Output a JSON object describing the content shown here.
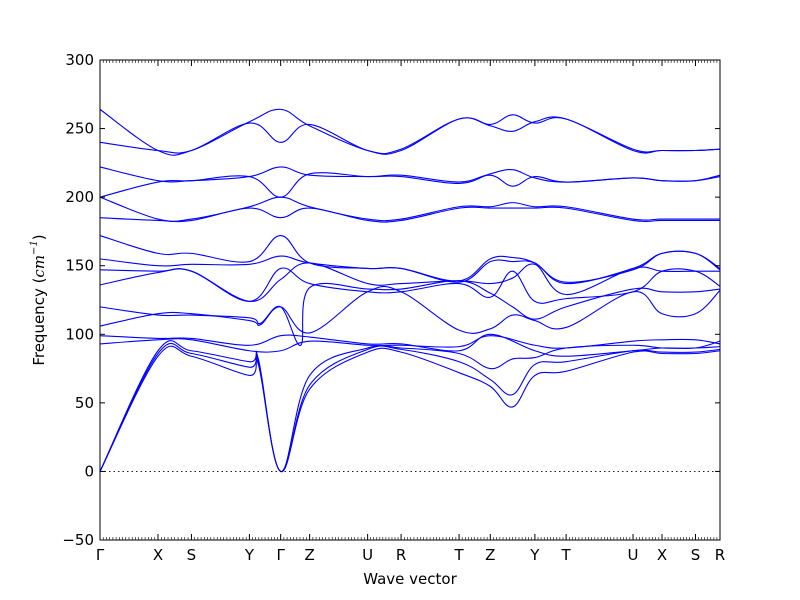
{
  "chart_data": {
    "type": "line",
    "title": "",
    "xlabel": "Wave vector",
    "ylabel": {
      "prefix": "Frequency (",
      "unit_base": "cm",
      "unit_exp": "−1",
      "suffix": ")"
    },
    "ylim": [
      -50,
      300
    ],
    "yticks": [
      -50,
      0,
      50,
      100,
      150,
      200,
      250,
      300
    ],
    "ytick_labels": [
      "−50",
      "0",
      "50",
      "100",
      "150",
      "200",
      "250",
      "300"
    ],
    "xlim": [
      0,
      13.9
    ],
    "kpoints": [
      {
        "label": "Γ",
        "x": 0
      },
      {
        "label": "X",
        "x": 1.3
      },
      {
        "label": "S",
        "x": 2.05
      },
      {
        "label": "Y",
        "x": 3.35
      },
      {
        "label": "Γ",
        "x": 4.05
      },
      {
        "label": "Z",
        "x": 4.7
      },
      {
        "label": "U",
        "x": 6.0
      },
      {
        "label": "R",
        "x": 6.75
      },
      {
        "label": "T",
        "x": 8.05
      },
      {
        "label": "Z",
        "x": 8.75
      },
      {
        "label": "Y",
        "x": 9.75
      },
      {
        "label": "T",
        "x": 10.45
      },
      {
        "label": "U",
        "x": 11.95
      },
      {
        "label": "X",
        "x": 12.6
      },
      {
        "label": "S",
        "x": 13.35
      },
      {
        "label": "R",
        "x": 13.9
      }
    ],
    "grid": false,
    "zero_line": {
      "y": 0,
      "style": "dotted"
    },
    "line_color": "#0000ff",
    "series": [
      {
        "x": [
          0,
          1.3,
          2.05,
          3.35,
          3.55,
          4.05,
          4.7,
          6.0,
          6.75,
          8.05,
          8.75,
          9.25,
          9.75,
          10.45,
          11.95,
          12.6,
          13.35,
          13.9
        ],
        "y": [
          0,
          84,
          84,
          70,
          78,
          0,
          60,
          87,
          87,
          72,
          62,
          47,
          70,
          73,
          87,
          86,
          86,
          88
        ]
      },
      {
        "x": [
          0,
          1.3,
          2.05,
          3.35,
          3.55,
          4.05,
          4.7,
          6.0,
          6.75,
          8.05,
          8.75,
          9.25,
          9.75,
          10.45,
          11.95,
          12.6,
          13.35,
          13.9
        ],
        "y": [
          0,
          86,
          86,
          76,
          80,
          0,
          63,
          89,
          89,
          80,
          67,
          56,
          78,
          80,
          88,
          87,
          87,
          89
        ]
      },
      {
        "x": [
          0,
          1.3,
          2.05,
          3.35,
          3.55,
          4.05,
          4.7,
          6.0,
          6.75,
          8.05,
          8.75,
          9.25,
          9.75,
          10.45,
          11.95,
          12.6,
          13.35,
          13.9
        ],
        "y": [
          0,
          88,
          88,
          80,
          82,
          0,
          70,
          90,
          90,
          86,
          75,
          82,
          83,
          90,
          92,
          90,
          90,
          91
        ]
      },
      {
        "x": [
          0,
          1.3,
          2.05,
          3.35,
          4.05,
          4.7,
          6.0,
          6.75,
          8.05,
          8.75,
          9.75,
          10.45,
          11.95,
          12.6,
          13.35,
          13.9
        ],
        "y": [
          93,
          96,
          96,
          88,
          88,
          95,
          92,
          92,
          91,
          99,
          92,
          90,
          95,
          96,
          96,
          93
        ]
      },
      {
        "x": [
          0,
          1.3,
          2.05,
          3.35,
          4.05,
          4.7,
          6.0,
          6.75,
          8.05,
          8.75,
          9.75,
          10.45,
          11.95,
          12.6,
          13.35,
          13.9
        ],
        "y": [
          99,
          97,
          97,
          92,
          99,
          98,
          93,
          93,
          88,
          100,
          88,
          84,
          88,
          90,
          90,
          95
        ]
      },
      {
        "x": [
          0,
          1.3,
          2.05,
          3.35,
          3.6,
          4.05,
          4.7,
          6.0,
          6.75,
          8.05,
          8.75,
          9.25,
          9.75,
          10.45,
          11.95,
          12.6,
          13.35,
          13.9
        ],
        "y": [
          106,
          115,
          115,
          110,
          107,
          120,
          101,
          131,
          131,
          103,
          104,
          114,
          110,
          105,
          131,
          115,
          115,
          132
        ]
      },
      {
        "x": [
          0,
          1.3,
          2.05,
          3.35,
          3.6,
          4.05,
          4.5,
          4.7,
          6.0,
          6.75,
          8.05,
          8.75,
          9.25,
          9.75,
          10.45,
          11.95,
          12.6,
          13.35,
          13.9
        ],
        "y": [
          120,
          114,
          114,
          112,
          108,
          120,
          92,
          134,
          133,
          133,
          139,
          130,
          120,
          111,
          120,
          133,
          131,
          131,
          133
        ]
      },
      {
        "x": [
          0,
          1.3,
          2.05,
          3.35,
          4.05,
          4.7,
          6.0,
          6.75,
          8.05,
          8.75,
          9.25,
          9.75,
          10.45,
          11.95,
          12.6,
          13.35,
          13.9
        ],
        "y": [
          136,
          145,
          146,
          124,
          148,
          137,
          131,
          131,
          137,
          127,
          146,
          124,
          126,
          131,
          146,
          146,
          135
        ]
      },
      {
        "x": [
          0,
          1.3,
          2.05,
          3.35,
          4.05,
          4.7,
          6.0,
          6.75,
          8.05,
          8.75,
          9.25,
          9.75,
          10.45,
          11.95,
          12.6,
          13.35,
          13.9
        ],
        "y": [
          147,
          146,
          146,
          124,
          140,
          152,
          137,
          137,
          139,
          137,
          141,
          151,
          129,
          148,
          146,
          146,
          146
        ]
      },
      {
        "x": [
          0,
          1.3,
          2.05,
          3.35,
          4.05,
          4.7,
          6.0,
          6.75,
          8.05,
          8.75,
          9.25,
          9.75,
          10.45,
          11.95,
          12.6,
          13.35,
          13.9
        ],
        "y": [
          155,
          150,
          151,
          151,
          157,
          152,
          148,
          148,
          138,
          153,
          153,
          152,
          137,
          148,
          159,
          159,
          147
        ]
      },
      {
        "x": [
          0,
          1.3,
          2.05,
          3.35,
          4.05,
          4.7,
          6.0,
          6.75,
          8.05,
          8.75,
          9.25,
          9.75,
          10.45,
          11.95,
          12.6,
          13.35,
          13.9
        ],
        "y": [
          172,
          159,
          159,
          153,
          172,
          152,
          148,
          148,
          139,
          155,
          156,
          152,
          138,
          147,
          159,
          159,
          148
        ]
      },
      {
        "x": [
          0,
          1.3,
          2.05,
          3.35,
          4.05,
          4.7,
          6.0,
          6.75,
          8.05,
          8.75,
          9.25,
          9.75,
          10.45,
          11.95,
          12.6,
          13.35,
          13.9
        ],
        "y": [
          185,
          183,
          183,
          192,
          185,
          192,
          183,
          183,
          192,
          192,
          192,
          192,
          192,
          183,
          183,
          183,
          183
        ]
      },
      {
        "x": [
          0,
          1.3,
          2.05,
          3.35,
          4.05,
          4.7,
          6.0,
          6.75,
          8.05,
          8.75,
          9.25,
          9.75,
          10.45,
          11.95,
          12.6,
          13.35,
          13.9
        ],
        "y": [
          200,
          184,
          184,
          193,
          200,
          193,
          184,
          184,
          193,
          193,
          196,
          193,
          193,
          184,
          184,
          184,
          184
        ]
      },
      {
        "x": [
          0,
          1.3,
          2.05,
          3.35,
          4.05,
          4.7,
          6.0,
          6.75,
          8.05,
          8.75,
          9.25,
          9.75,
          10.45,
          11.95,
          12.6,
          13.35,
          13.9
        ],
        "y": [
          200,
          211,
          212,
          215,
          200,
          217,
          215,
          216,
          211,
          216,
          208,
          215,
          211,
          214,
          212,
          212,
          215
        ]
      },
      {
        "x": [
          0,
          1.3,
          2.05,
          3.35,
          4.05,
          4.7,
          6.0,
          6.75,
          8.05,
          8.75,
          9.25,
          9.75,
          10.45,
          11.95,
          12.6,
          13.35,
          13.9
        ],
        "y": [
          222,
          212,
          212,
          215,
          222,
          216,
          215,
          215,
          210,
          217,
          220,
          214,
          211,
          214,
          212,
          212,
          216
        ]
      },
      {
        "x": [
          0,
          1.3,
          2.05,
          3.35,
          4.05,
          4.7,
          6.0,
          6.75,
          8.05,
          8.75,
          9.25,
          9.75,
          10.45,
          11.95,
          12.6,
          13.35,
          13.9
        ],
        "y": [
          240,
          234,
          234,
          254,
          240,
          253,
          234,
          235,
          257,
          252,
          248,
          255,
          257,
          235,
          234,
          234,
          235
        ]
      },
      {
        "x": [
          0,
          1.3,
          2.05,
          3.35,
          4.05,
          4.7,
          6.0,
          6.75,
          8.05,
          8.75,
          9.25,
          9.75,
          10.45,
          11.95,
          12.6,
          13.35,
          13.9
        ],
        "y": [
          264,
          234,
          234,
          255,
          264,
          252,
          234,
          234,
          257,
          253,
          260,
          254,
          257,
          234,
          234,
          234,
          235
        ]
      }
    ]
  }
}
